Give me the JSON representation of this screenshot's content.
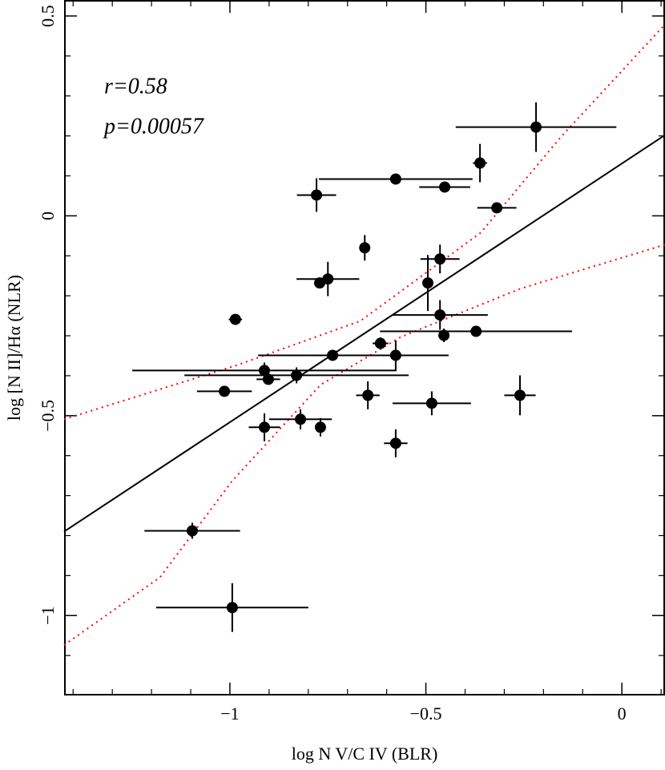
{
  "chart_data": {
    "type": "scatter",
    "x_label": "log N V/C IV (BLR)",
    "y_label": "log [N II]/Hα (NLR)",
    "annotations": [
      "r=0.58",
      "p=0.00057"
    ],
    "xlim": [
      -1.423,
      0.11
    ],
    "ylim": [
      -1.2,
      0.54
    ],
    "xticks": [
      {
        "value": -1,
        "label": "−1"
      },
      {
        "value": -0.5,
        "label": "−0.5"
      },
      0
    ],
    "yticks": [
      {
        "value": -1,
        "label": "−1"
      },
      {
        "value": -0.5,
        "label": "−0.5"
      },
      0,
      0.5
    ],
    "xminor_ticks": [
      -1.4,
      -1.3,
      -1.2,
      -1.1,
      -0.9,
      -0.8,
      -0.7,
      -0.6,
      -0.4,
      -0.3,
      -0.2,
      -0.1,
      0.1
    ],
    "yminor_ticks": [
      -1.1,
      -0.9,
      -0.8,
      -0.7,
      -0.6,
      -0.4,
      -0.3,
      -0.2,
      -0.1,
      0.1,
      0.2,
      0.3,
      0.4
    ],
    "series": [
      {
        "color": "#000000",
        "x": [
          -0.219,
          -0.362,
          -0.577,
          -0.452,
          -0.779,
          -0.319,
          -0.656,
          -0.464,
          -0.75,
          -0.771,
          -0.495,
          -0.986,
          -0.464,
          -0.454,
          -0.372,
          -0.616,
          -0.738,
          -0.577,
          -0.912,
          -0.902,
          -0.83,
          -1.014,
          -0.648,
          -0.26,
          -0.485,
          -0.82,
          -0.912,
          -0.769,
          -0.577,
          -1.096,
          -0.994
        ],
        "y": [
          0.222,
          0.132,
          0.092,
          0.072,
          0.052,
          0.02,
          -0.08,
          -0.108,
          -0.158,
          -0.168,
          -0.168,
          -0.259,
          -0.248,
          -0.299,
          -0.289,
          -0.319,
          -0.349,
          -0.349,
          -0.387,
          -0.409,
          -0.399,
          -0.439,
          -0.449,
          -0.449,
          -0.469,
          -0.509,
          -0.529,
          -0.529,
          -0.569,
          -0.788,
          -0.98
        ],
        "xerr": [
          0.205,
          0.018,
          0.196,
          0.065,
          0.05,
          0.05,
          0,
          0.05,
          0.08,
          0,
          0,
          0.017,
          0.122,
          0,
          0.245,
          0.02,
          0.19,
          0.135,
          0.337,
          0.03,
          0.286,
          0.07,
          0.03,
          0.04,
          0.1,
          0.08,
          0.04,
          0,
          0.03,
          0.122,
          0.194
        ],
        "yerr": [
          0.062,
          0.048,
          0,
          0,
          0.042,
          0,
          0.032,
          0.036,
          0.043,
          0,
          0.07,
          0,
          0.037,
          0.017,
          0,
          0.015,
          0,
          0.037,
          0.02,
          0,
          0.02,
          0,
          0.035,
          0.05,
          0.03,
          0.025,
          0.035,
          0.023,
          0.035,
          0.02,
          0.061
        ]
      }
    ],
    "fit_line": {
      "color": "#000000",
      "x": [
        -1.423,
        0.11
      ],
      "y": [
        -0.79,
        0.202
      ]
    },
    "confidence_bands": {
      "color": "#ff0000",
      "upper": {
        "x": [
          -1.423,
          -0.98,
          -0.667,
          -0.36,
          -0.155,
          0.11
        ],
        "y": [
          -0.509,
          -0.373,
          -0.263,
          -0.042,
          0.198,
          0.479
        ]
      },
      "lower": {
        "x": [
          -1.423,
          -1.178,
          -0.994,
          -0.769,
          -0.564,
          -0.258,
          0.11
        ],
        "y": [
          -1.074,
          -0.904,
          -0.663,
          -0.423,
          -0.303,
          -0.182,
          -0.072
        ]
      }
    }
  }
}
